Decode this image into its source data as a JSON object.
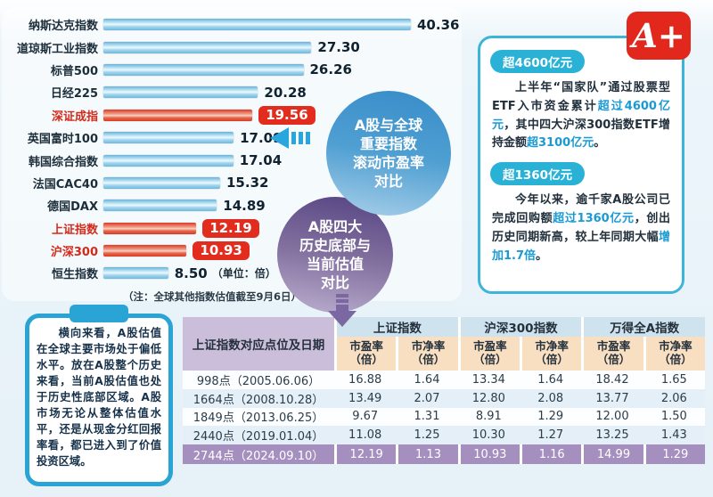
{
  "colors": {
    "bar_blue": "#68b2da",
    "bar_red": "#e43322",
    "value_box_red": "#e22c1d",
    "badge_teal": "#2ab1d6",
    "panel_border_teal": "#3db5da",
    "logo_red": "#e2271d",
    "highlight_text_blue": "#1a9ad4",
    "circle_blue": "#3a8ec9",
    "circle_purple": "#5a4886",
    "table_corner_lavender": "#cbbedb",
    "table_group_blue": "#cfe3ef",
    "table_subheader_peach": "#f8dfc1",
    "table_stripe_blue": "#e4eff7",
    "table_highlight_purple": "#a58fbf"
  },
  "callouts": {
    "pe_circle": {
      "lines": [
        "A股与全球",
        "重要指数",
        "滚动市盈率",
        "对比"
      ]
    },
    "bottom_circle": {
      "lines": [
        "A股四大",
        "历史底部与",
        "当前估值",
        "对比"
      ]
    }
  },
  "right_panel": {
    "logo": "A+",
    "sections": [
      {
        "badge": "超4600亿元",
        "segments": [
          {
            "t": "上半年“国家队”通过股票型ETF入市资金累计",
            "hl": false
          },
          {
            "t": "超过4600亿元",
            "hl": true
          },
          {
            "t": "，其中四大沪深300指数ETF增持金额",
            "hl": false
          },
          {
            "t": "超3100亿元",
            "hl": true
          },
          {
            "t": "。",
            "hl": false
          }
        ]
      },
      {
        "badge": "超1360亿元",
        "segments": [
          {
            "t": "今年以来，逾千家A股公司已完成回购额",
            "hl": false
          },
          {
            "t": "超过1360亿元",
            "hl": true
          },
          {
            "t": "，创出历史同期新高，较上年同期大幅",
            "hl": false
          },
          {
            "t": "增加1.7倍",
            "hl": true
          },
          {
            "t": "。",
            "hl": false
          }
        ]
      }
    ]
  },
  "note_card": {
    "text": "横向来看，A股估值在全球主要市场处于偏低水平。放在A股整个历史来看，当前A股估值也处于历史性底部区域。A股市场无论从整体估值水平，还是从现金分红回报率看，都已进入到了价值投资区域。"
  },
  "chart_data": [
    {
      "type": "bar",
      "orientation": "horizontal",
      "title": "A股与全球重要指数滚动市盈率对比",
      "unit": "（单位：倍）",
      "note": "（注：全球其他指数估值截至9月6日）",
      "xlim": [
        0,
        40.36
      ],
      "categories": [
        "纳斯达克指数",
        "道琼斯工业指数",
        "标普500",
        "日经225",
        "深证成指",
        "英国富时100",
        "韩国综合指数",
        "法国CAC40",
        "德国DAX",
        "上证指数",
        "沪深300",
        "恒生指数"
      ],
      "values": [
        40.36,
        27.3,
        26.26,
        20.28,
        19.56,
        17.09,
        17.04,
        15.32,
        14.89,
        12.19,
        10.93,
        8.5
      ],
      "highlighted": [
        false,
        false,
        false,
        false,
        true,
        false,
        false,
        false,
        false,
        true,
        true,
        false
      ]
    },
    {
      "type": "table",
      "title": "A股四大历史底部与当前估值对比",
      "corner_header": "上证指数对应点位及日期",
      "groups": [
        "上证指数",
        "沪深300指数",
        "万得全A指数"
      ],
      "sub_header_metric": [
        "市盈率",
        "市净率",
        "市盈率",
        "市净率",
        "市盈率",
        "市净率"
      ],
      "sub_header_unit": "（倍）",
      "rows": [
        {
          "label": "998点（2005.06.06）",
          "values": [
            "16.88",
            "1.64",
            "13.34",
            "1.64",
            "18.42",
            "1.65"
          ],
          "highlight": false
        },
        {
          "label": "1664点（2008.10.28）",
          "values": [
            "13.49",
            "2.07",
            "12.80",
            "2.08",
            "13.77",
            "2.06"
          ],
          "highlight": false
        },
        {
          "label": "1849点（2013.06.25）",
          "values": [
            "9.67",
            "1.31",
            "8.91",
            "1.29",
            "12.00",
            "1.50"
          ],
          "highlight": false
        },
        {
          "label": "2440点（2019.01.04）",
          "values": [
            "11.08",
            "1.25",
            "10.30",
            "1.27",
            "13.25",
            "1.43"
          ],
          "highlight": false
        },
        {
          "label": "2744点（2024.09.10）",
          "values": [
            "12.19",
            "1.13",
            "10.93",
            "1.16",
            "14.99",
            "1.29"
          ],
          "highlight": true
        }
      ]
    }
  ]
}
